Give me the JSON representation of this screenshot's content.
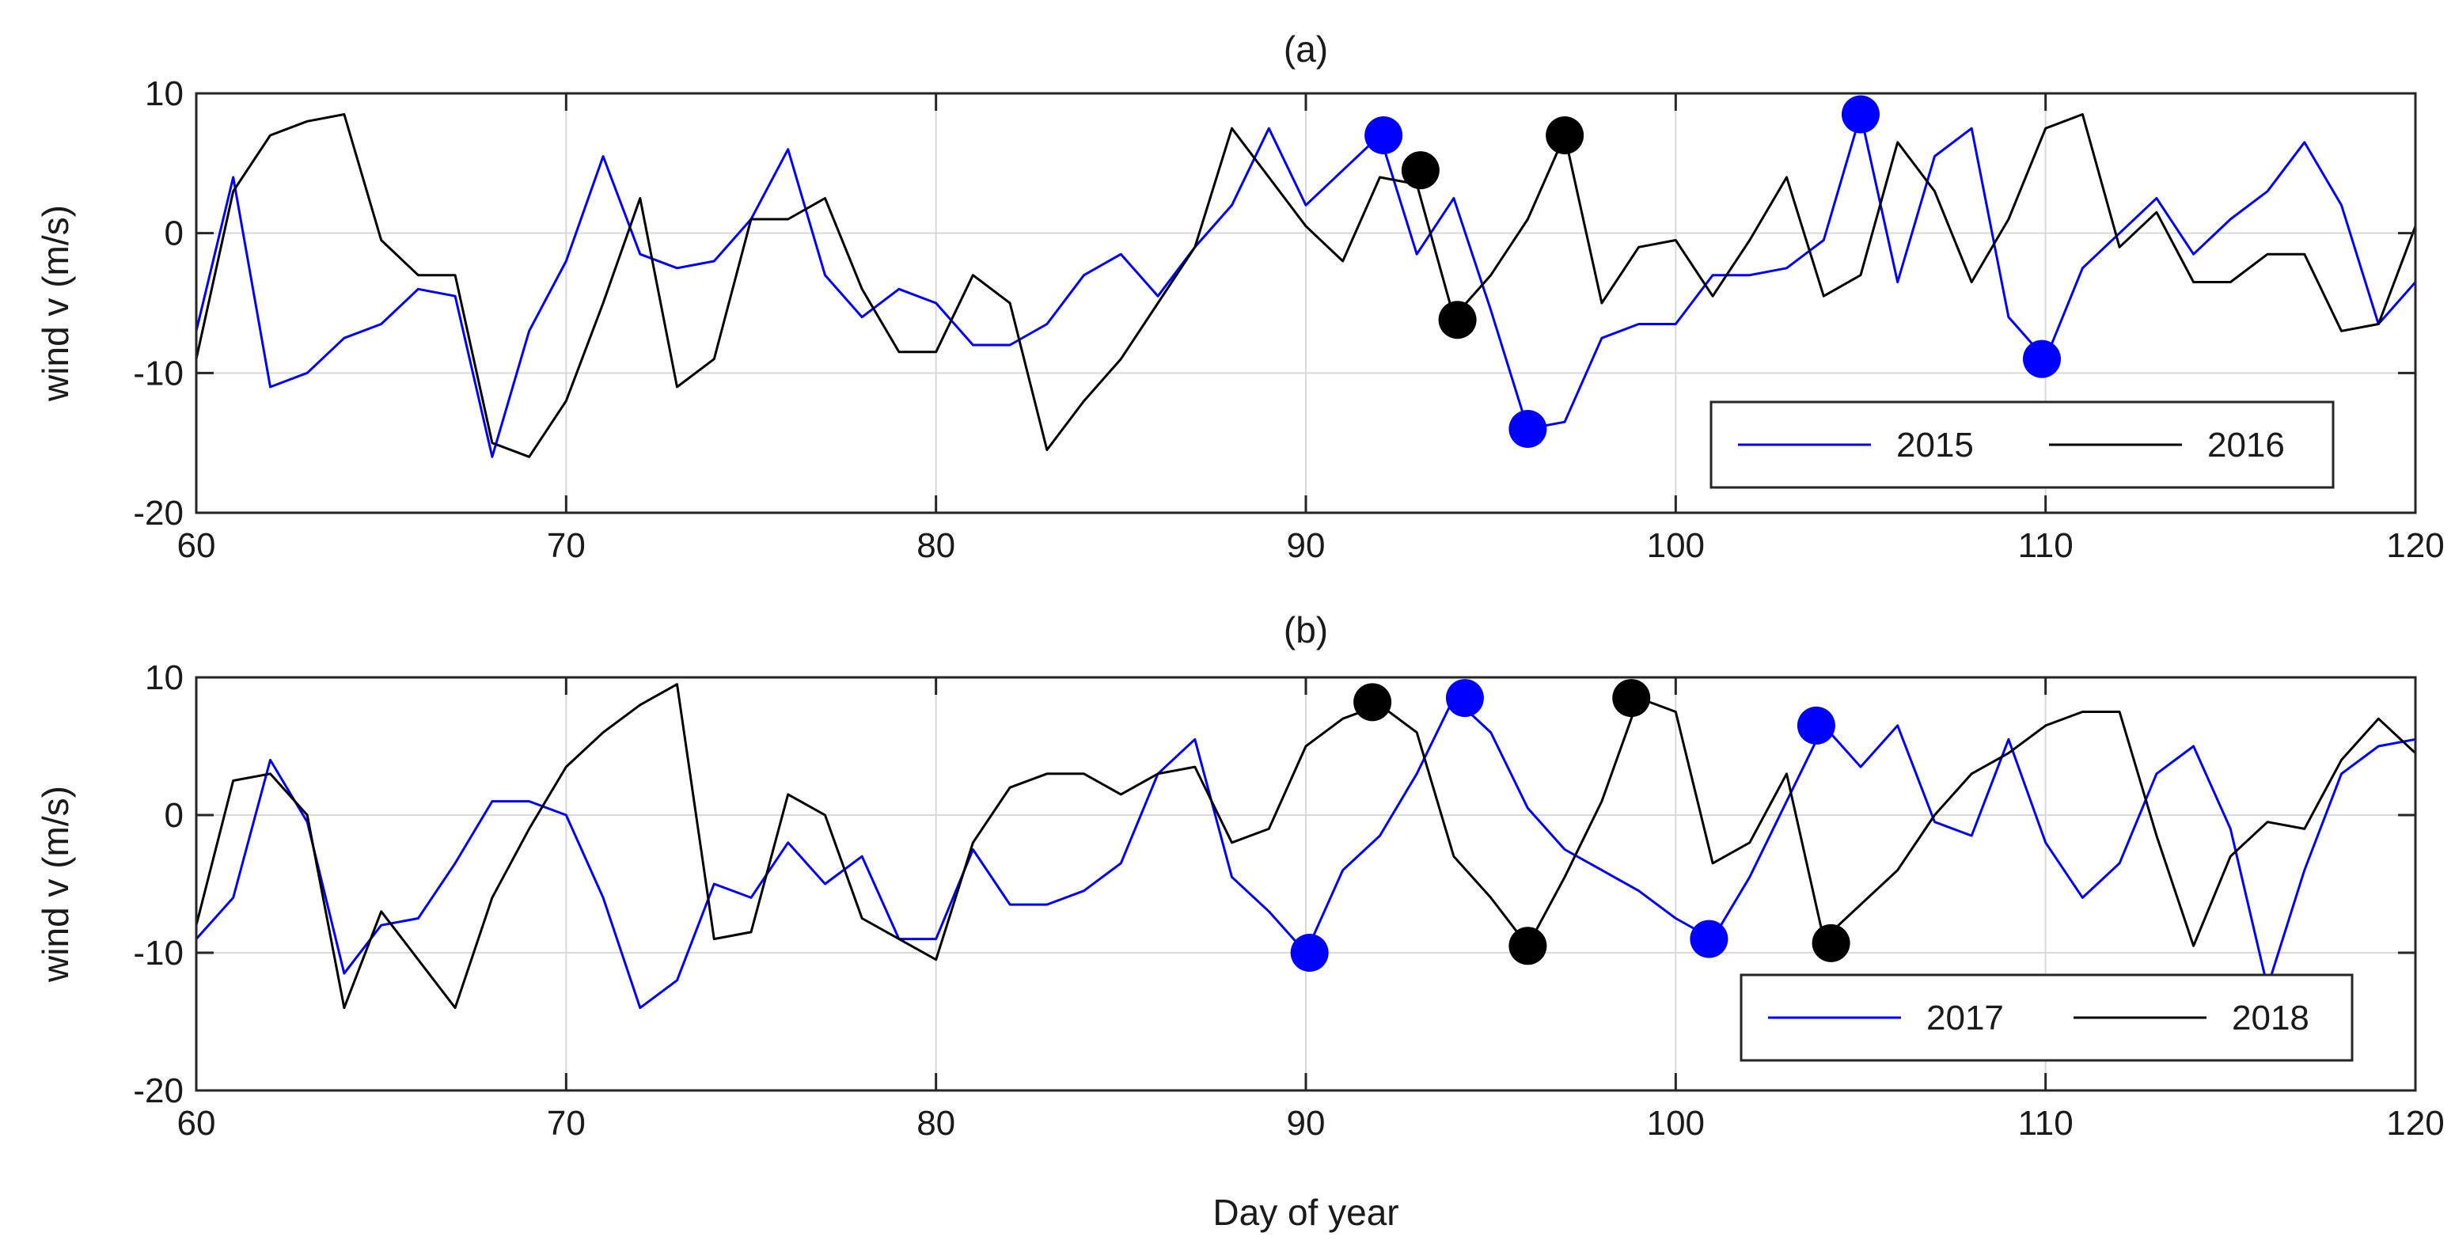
{
  "chart_data": [
    {
      "type": "line",
      "title": "(a)",
      "xlabel": "",
      "ylabel": "wind v (m/s)",
      "xlim": [
        60,
        120
      ],
      "ylim": [
        -20,
        10
      ],
      "xticks": [
        60,
        70,
        80,
        90,
        100,
        110,
        120
      ],
      "yticks": [
        -20,
        -10,
        0,
        10
      ],
      "grid": true,
      "legend_position": "bottom-right",
      "series": [
        {
          "name": "2015",
          "color": "#0000ff",
          "x": [
            60,
            61,
            62,
            63,
            64,
            65,
            66,
            67,
            68,
            69,
            70,
            71,
            72,
            73,
            74,
            75,
            76,
            77,
            78,
            79,
            80,
            81,
            82,
            83,
            84,
            85,
            86,
            87,
            88,
            89,
            90,
            91,
            92,
            93,
            94,
            95,
            96,
            97,
            98,
            99,
            100,
            101,
            102,
            103,
            104,
            105,
            106,
            107,
            108,
            109,
            110,
            111,
            112,
            113,
            114,
            115,
            116,
            117,
            118,
            119,
            120
          ],
          "y": [
            -7,
            4,
            -11,
            -10,
            -7.5,
            -6.5,
            -4,
            -4.5,
            -16,
            -7,
            -2,
            5.5,
            -1.5,
            -2.5,
            -2,
            1,
            6,
            -3,
            -6,
            -4,
            -5,
            -8,
            -8,
            -6.5,
            -3,
            -1.5,
            -4.5,
            -1,
            2,
            7.5,
            2,
            4.5,
            7,
            -1.5,
            2.5,
            -5.5,
            -14,
            -13.5,
            -7.5,
            -6.5,
            -6.5,
            -3,
            -3,
            -2.5,
            -0.5,
            8.5,
            -3.5,
            5.5,
            7.5,
            -6,
            -9,
            -2.5,
            0,
            2.5,
            -1.5,
            1,
            3,
            6.5,
            2,
            -6.5,
            -3.5
          ],
          "highlight_points": [
            [
              92.1,
              7
            ],
            [
              96,
              -14
            ],
            [
              105,
              8.5
            ],
            [
              109.9,
              -9
            ]
          ]
        },
        {
          "name": "2016",
          "color": "#000000",
          "x": [
            60,
            61,
            62,
            63,
            64,
            65,
            66,
            67,
            68,
            69,
            70,
            71,
            72,
            73,
            74,
            75,
            76,
            77,
            78,
            79,
            80,
            81,
            82,
            83,
            84,
            85,
            86,
            87,
            88,
            89,
            90,
            91,
            92,
            93,
            94,
            95,
            96,
            97,
            98,
            99,
            100,
            101,
            102,
            103,
            104,
            105,
            106,
            107,
            108,
            109,
            110,
            111,
            112,
            113,
            114,
            115,
            116,
            117,
            118,
            119,
            120
          ],
          "y": [
            -9,
            3,
            7,
            8,
            8.5,
            -0.5,
            -3,
            -3,
            -15,
            -16,
            -12,
            -5,
            2.5,
            -11,
            -9,
            1,
            1,
            2.5,
            -4,
            -8.5,
            -8.5,
            -3,
            -5,
            -15.5,
            -12,
            -9,
            -5,
            -1,
            7.5,
            4,
            0.5,
            -2,
            4,
            3.5,
            -6,
            -3,
            1,
            7,
            -5,
            -1,
            -0.5,
            -4.5,
            -0.5,
            4,
            -4.5,
            -3,
            6.5,
            3,
            -3.5,
            1,
            7.5,
            8.5,
            -1,
            1.5,
            -3.5,
            -3.5,
            -1.5,
            -1.5,
            -7,
            -6.5,
            0.5
          ],
          "highlight_points": [
            [
              93.1,
              4.5
            ],
            [
              94.1,
              -6.2
            ],
            [
              97,
              7
            ]
          ]
        }
      ]
    },
    {
      "type": "line",
      "title": "(b)",
      "xlabel": "Day of year",
      "ylabel": "wind v (m/s)",
      "xlim": [
        60,
        120
      ],
      "ylim": [
        -20,
        10
      ],
      "xticks": [
        60,
        70,
        80,
        90,
        100,
        110,
        120
      ],
      "yticks": [
        -20,
        -10,
        0,
        10
      ],
      "grid": true,
      "legend_position": "bottom-right",
      "series": [
        {
          "name": "2017",
          "color": "#0000ff",
          "x": [
            60,
            61,
            62,
            63,
            64,
            65,
            66,
            67,
            68,
            69,
            70,
            71,
            72,
            73,
            74,
            75,
            76,
            77,
            78,
            79,
            80,
            81,
            82,
            83,
            84,
            85,
            86,
            87,
            88,
            89,
            90,
            91,
            92,
            93,
            94,
            95,
            96,
            97,
            98,
            99,
            100,
            101,
            102,
            103,
            104,
            105,
            106,
            107,
            108,
            109,
            110,
            111,
            112,
            113,
            114,
            115,
            116,
            117,
            118,
            119,
            120
          ],
          "y": [
            -9,
            -6,
            4,
            -0.5,
            -11.5,
            -8,
            -7.5,
            -3.5,
            1,
            1,
            0,
            -6,
            -14,
            -12,
            -5,
            -6,
            -2,
            -5,
            -3,
            -9,
            -9,
            -2.5,
            -6.5,
            -6.5,
            -5.5,
            -3.5,
            3,
            5.5,
            -4.5,
            -7,
            -10,
            -4,
            -1.5,
            3,
            8.5,
            6,
            0.5,
            -2.5,
            -4,
            -5.5,
            -7.5,
            -9,
            -4.5,
            1,
            6.5,
            3.5,
            6.5,
            -0.5,
            -1.5,
            5.5,
            -2,
            -6,
            -3.5,
            3,
            5,
            -1,
            -12.5,
            -4,
            3,
            5,
            5.5
          ],
          "highlight_points": [
            [
              90.1,
              -10
            ],
            [
              94.3,
              8.5
            ],
            [
              100.9,
              -9
            ],
            [
              103.8,
              6.5
            ]
          ]
        },
        {
          "name": "2018",
          "color": "#000000",
          "x": [
            60,
            61,
            62,
            63,
            64,
            65,
            66,
            67,
            68,
            69,
            70,
            71,
            72,
            73,
            74,
            75,
            76,
            77,
            78,
            79,
            80,
            81,
            82,
            83,
            84,
            85,
            86,
            87,
            88,
            89,
            90,
            91,
            92,
            93,
            94,
            95,
            96,
            97,
            98,
            99,
            100,
            101,
            102,
            103,
            104,
            105,
            106,
            107,
            108,
            109,
            110,
            111,
            112,
            113,
            114,
            115,
            116,
            117,
            118,
            119,
            120
          ],
          "y": [
            -8,
            2.5,
            3,
            0,
            -14,
            -7,
            -10.5,
            -14,
            -6,
            -1,
            3.5,
            6,
            8,
            9.5,
            -9,
            -8.5,
            1.5,
            0,
            -7.5,
            -9,
            -10.5,
            -2,
            2,
            3,
            3,
            1.5,
            3,
            3.5,
            -2,
            -1,
            5,
            7,
            8,
            6,
            -3,
            -6,
            -9.5,
            -4.5,
            1,
            8.5,
            7.5,
            -3.5,
            -2,
            3,
            -9,
            -6.5,
            -4,
            0,
            3,
            4.5,
            6.5,
            7.5,
            7.5,
            -1.5,
            -9.5,
            -3,
            -0.5,
            -1,
            4,
            7,
            4.5
          ],
          "highlight_points": [
            [
              91.8,
              8.2
            ],
            [
              96,
              -9.5
            ],
            [
              98.8,
              8.5
            ],
            [
              104.2,
              -9.3
            ]
          ]
        }
      ]
    }
  ]
}
